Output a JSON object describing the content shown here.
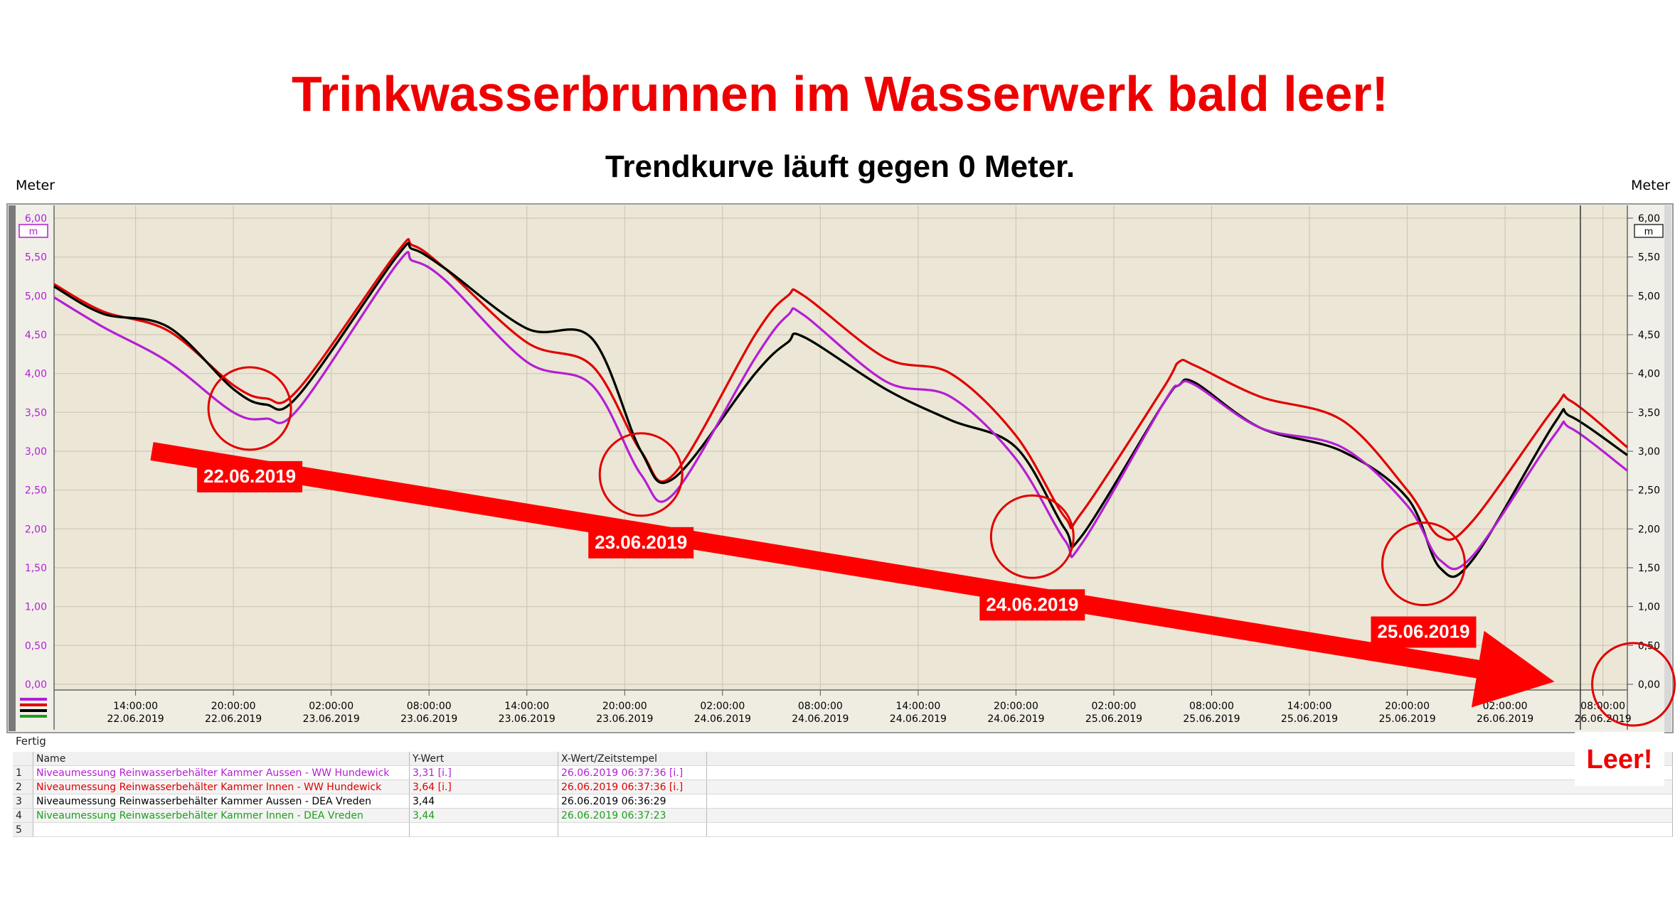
{
  "title": "Trinkwasserbrunnen im Wasserwerk bald leer!",
  "subtitle": "Trendkurve läuft gegen 0 Meter.",
  "status": "Fertig",
  "leer_label": "Leer!",
  "colors": {
    "magenta": "#b41ed4",
    "red": "#e00000",
    "black": "#000000",
    "green": "#1aa01a",
    "plot_bg": "#ece6d6",
    "arrow": "#ff0000"
  },
  "chart_data": {
    "type": "line",
    "y_unit_label": "Meter",
    "y_unit_box": "m",
    "ylim": [
      0,
      6
    ],
    "y_ticks": [
      "0,00",
      "0,50",
      "1,00",
      "1,50",
      "2,00",
      "2,50",
      "3,00",
      "3,50",
      "4,00",
      "4,50",
      "5,00",
      "5,50",
      "6,00"
    ],
    "x_start": "22.06.2019 09:00",
    "x_end": "26.06.2019 09:30",
    "x_ticks": [
      {
        "time": "14:00:00",
        "date": "22.06.2019"
      },
      {
        "time": "20:00:00",
        "date": "22.06.2019"
      },
      {
        "time": "02:00:00",
        "date": "23.06.2019"
      },
      {
        "time": "08:00:00",
        "date": "23.06.2019"
      },
      {
        "time": "14:00:00",
        "date": "23.06.2019"
      },
      {
        "time": "20:00:00",
        "date": "23.06.2019"
      },
      {
        "time": "02:00:00",
        "date": "24.06.2019"
      },
      {
        "time": "08:00:00",
        "date": "24.06.2019"
      },
      {
        "time": "14:00:00",
        "date": "24.06.2019"
      },
      {
        "time": "20:00:00",
        "date": "24.06.2019"
      },
      {
        "time": "02:00:00",
        "date": "25.06.2019"
      },
      {
        "time": "08:00:00",
        "date": "25.06.2019"
      },
      {
        "time": "14:00:00",
        "date": "25.06.2019"
      },
      {
        "time": "20:00:00",
        "date": "25.06.2019"
      },
      {
        "time": "02:00:00",
        "date": "26.06.2019"
      },
      {
        "time": "08:00:00",
        "date": "26.06.2019"
      }
    ],
    "cursor_time": "26.06.2019 06:37",
    "series": [
      {
        "name": "Niveaumessung Reinwasserbehälter Kammer Innen - WW Hundewick",
        "color": "#e00000",
        "x": [
          "22.06.2019 09:00",
          "22.06.2019 12:00",
          "22.06.2019 16:00",
          "22.06.2019 20:00",
          "22.06.2019 22:00",
          "23.06.2019 00:00",
          "23.06.2019 06:00",
          "23.06.2019 07:00",
          "23.06.2019 09:00",
          "23.06.2019 14:00",
          "23.06.2019 18:00",
          "23.06.2019 21:00",
          "23.06.2019 23:00",
          "24.06.2019 04:00",
          "24.06.2019 06:00",
          "24.06.2019 07:00",
          "24.06.2019 12:00",
          "24.06.2019 16:00",
          "24.06.2019 20:00",
          "24.06.2019 23:00",
          "25.06.2019 00:00",
          "25.06.2019 05:00",
          "25.06.2019 06:00",
          "25.06.2019 07:00",
          "25.06.2019 11:00",
          "25.06.2019 16:00",
          "25.06.2019 20:00",
          "25.06.2019 22:00",
          "26.06.2019 00:00",
          "26.06.2019 05:00",
          "26.06.2019 06:00",
          "26.06.2019 09:30"
        ],
        "y": [
          5.15,
          4.8,
          4.55,
          3.85,
          3.68,
          3.8,
          5.55,
          5.65,
          5.35,
          4.4,
          4.1,
          3.0,
          2.7,
          4.5,
          5.0,
          5.0,
          4.2,
          4.0,
          3.2,
          2.15,
          2.2,
          3.8,
          4.15,
          4.1,
          3.7,
          3.4,
          2.5,
          1.9,
          2.1,
          3.55,
          3.65,
          3.05
        ]
      },
      {
        "name": "Niveaumessung Reinwasserbehälter Kammer Innen - DEA Vreden",
        "color": "#1aa01a",
        "x": [
          "22.06.2019 09:00",
          "22.06.2019 12:00",
          "22.06.2019 16:00",
          "22.06.2019 20:00",
          "22.06.2019 22:00",
          "23.06.2019 00:00",
          "23.06.2019 06:00",
          "23.06.2019 07:00",
          "23.06.2019 09:00",
          "23.06.2019 14:00",
          "23.06.2019 18:00",
          "23.06.2019 21:00",
          "23.06.2019 23:00",
          "24.06.2019 04:00",
          "24.06.2019 06:00",
          "24.06.2019 07:00",
          "24.06.2019 12:00",
          "24.06.2019 16:00",
          "24.06.2019 20:00",
          "24.06.2019 23:00",
          "25.06.2019 00:00",
          "25.06.2019 05:00",
          "25.06.2019 06:00",
          "25.06.2019 07:00",
          "25.06.2019 11:00",
          "25.06.2019 16:00",
          "25.06.2019 20:00",
          "25.06.2019 22:00",
          "26.06.2019 00:00",
          "26.06.2019 05:00",
          "26.06.2019 06:00",
          "26.06.2019 09:30"
        ],
        "y": [
          5.12,
          4.77,
          4.6,
          3.8,
          3.6,
          3.72,
          5.5,
          5.6,
          5.35,
          4.58,
          4.45,
          3.0,
          2.65,
          4.0,
          4.4,
          4.47,
          3.8,
          3.4,
          3.05,
          2.0,
          1.9,
          3.6,
          3.85,
          3.88,
          3.3,
          3.0,
          2.4,
          1.5,
          1.6,
          3.35,
          3.45,
          2.95
        ]
      },
      {
        "name": "Niveaumessung Reinwasserbehälter Kammer Aussen - DEA Vreden",
        "color": "#000000",
        "x": [
          "22.06.2019 09:00",
          "22.06.2019 12:00",
          "22.06.2019 16:00",
          "22.06.2019 20:00",
          "22.06.2019 22:00",
          "23.06.2019 00:00",
          "23.06.2019 06:00",
          "23.06.2019 07:00",
          "23.06.2019 09:00",
          "23.06.2019 14:00",
          "23.06.2019 18:00",
          "23.06.2019 21:00",
          "23.06.2019 23:00",
          "24.06.2019 04:00",
          "24.06.2019 06:00",
          "24.06.2019 07:00",
          "24.06.2019 12:00",
          "24.06.2019 16:00",
          "24.06.2019 20:00",
          "24.06.2019 23:00",
          "25.06.2019 00:00",
          "25.06.2019 05:00",
          "25.06.2019 06:00",
          "25.06.2019 07:00",
          "25.06.2019 11:00",
          "25.06.2019 16:00",
          "25.06.2019 20:00",
          "25.06.2019 22:00",
          "26.06.2019 00:00",
          "26.06.2019 05:00",
          "26.06.2019 06:00",
          "26.06.2019 09:30"
        ],
        "y": [
          5.12,
          4.77,
          4.6,
          3.8,
          3.6,
          3.72,
          5.5,
          5.6,
          5.35,
          4.58,
          4.45,
          3.0,
          2.65,
          4.0,
          4.4,
          4.47,
          3.8,
          3.4,
          3.05,
          2.0,
          1.9,
          3.6,
          3.85,
          3.88,
          3.3,
          3.0,
          2.4,
          1.5,
          1.6,
          3.35,
          3.45,
          2.95
        ]
      },
      {
        "name": "Niveaumessung Reinwasserbehälter Kammer Aussen - WW Hundewick",
        "color": "#b41ed4",
        "x": [
          "22.06.2019 09:00",
          "22.06.2019 12:00",
          "22.06.2019 16:00",
          "22.06.2019 20:00",
          "22.06.2019 22:00",
          "23.06.2019 00:00",
          "23.06.2019 06:00",
          "23.06.2019 07:00",
          "23.06.2019 09:00",
          "23.06.2019 14:00",
          "23.06.2019 18:00",
          "23.06.2019 21:00",
          "23.06.2019 23:00",
          "24.06.2019 04:00",
          "24.06.2019 06:00",
          "24.06.2019 07:00",
          "24.06.2019 12:00",
          "24.06.2019 16:00",
          "24.06.2019 20:00",
          "24.06.2019 23:00",
          "25.06.2019 00:00",
          "25.06.2019 05:00",
          "25.06.2019 06:00",
          "25.06.2019 07:00",
          "25.06.2019 11:00",
          "25.06.2019 16:00",
          "25.06.2019 20:00",
          "25.06.2019 22:00",
          "26.06.2019 00:00",
          "26.06.2019 05:00",
          "26.06.2019 06:00",
          "26.06.2019 09:30"
        ],
        "y": [
          4.98,
          4.6,
          4.15,
          3.5,
          3.42,
          3.55,
          5.4,
          5.45,
          5.2,
          4.15,
          3.85,
          2.7,
          2.45,
          4.2,
          4.75,
          4.75,
          3.9,
          3.7,
          2.9,
          1.85,
          1.8,
          3.6,
          3.85,
          3.85,
          3.3,
          3.05,
          2.3,
          1.6,
          1.65,
          3.2,
          3.3,
          2.75
        ]
      }
    ],
    "annotations": [
      {
        "label": "22.06.2019",
        "x": "22.06.2019 21:00",
        "y": 3.55
      },
      {
        "label": "23.06.2019",
        "x": "23.06.2019 21:00",
        "y": 2.7
      },
      {
        "label": "24.06.2019",
        "x": "24.06.2019 21:00",
        "y": 1.9
      },
      {
        "label": "25.06.2019",
        "x": "25.06.2019 21:00",
        "y": 1.55
      }
    ],
    "target_circle": {
      "x": "26.06.2019 09:00",
      "y": 0.0
    },
    "trend_arrow": {
      "from": {
        "x": "22.06.2019 15:00",
        "y": 3.0
      },
      "to": {
        "x": "26.06.2019 06:00",
        "y": 0.0
      }
    }
  },
  "legend_table": {
    "headers": [
      "Name",
      "Y-Wert",
      "X-Wert/Zeitstempel"
    ],
    "rows": [
      {
        "idx": "1",
        "name": "Niveaumessung Reinwasserbehälter Kammer Aussen - WW Hundewick",
        "y": "3,31 [i.]",
        "x": "26.06.2019 06:37:36 [i.]",
        "color": "#b41ed4"
      },
      {
        "idx": "2",
        "name": "Niveaumessung Reinwasserbehälter Kammer Innen - WW Hundewick",
        "y": "3,64 [i.]",
        "x": "26.06.2019 06:37:36 [i.]",
        "color": "#e00000"
      },
      {
        "idx": "3",
        "name": "Niveaumessung Reinwasserbehälter Kammer Aussen - DEA Vreden",
        "y": "3,44",
        "x": "26.06.2019 06:36:29",
        "color": "#000000"
      },
      {
        "idx": "4",
        "name": "Niveaumessung Reinwasserbehälter Kammer Innen - DEA Vreden",
        "y": "3,44",
        "x": "26.06.2019 06:37:23",
        "color": "#1aa01a"
      },
      {
        "idx": "5",
        "name": "",
        "y": "",
        "x": "",
        "color": "#000000"
      }
    ]
  }
}
